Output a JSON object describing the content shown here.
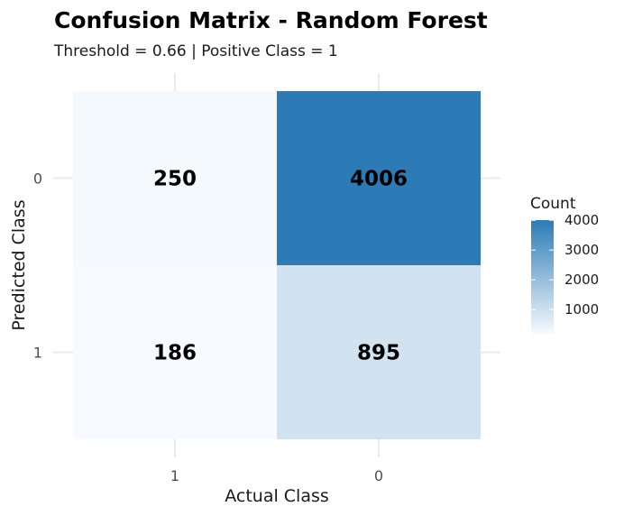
{
  "chart_data": {
    "type": "heatmap",
    "title": "Confusion Matrix - Random Forest",
    "subtitle": "Threshold = 0.66 | Positive Class = 1",
    "xlabel": "Actual Class",
    "ylabel": "Predicted Class",
    "x_categories": [
      "1",
      "0"
    ],
    "y_categories": [
      "0",
      "1"
    ],
    "cells": [
      {
        "x": "1",
        "y": "0",
        "value": 250
      },
      {
        "x": "0",
        "y": "0",
        "value": 4006
      },
      {
        "x": "1",
        "y": "1",
        "value": 186
      },
      {
        "x": "0",
        "y": "1",
        "value": 895
      }
    ],
    "legend": {
      "title": "Count",
      "ticks": [
        1000,
        2000,
        3000,
        4000
      ],
      "min": 186,
      "max": 4006,
      "low_color": "#f7fbff",
      "high_color": "#2c7bb6",
      "placement": "right"
    },
    "grid": true
  }
}
